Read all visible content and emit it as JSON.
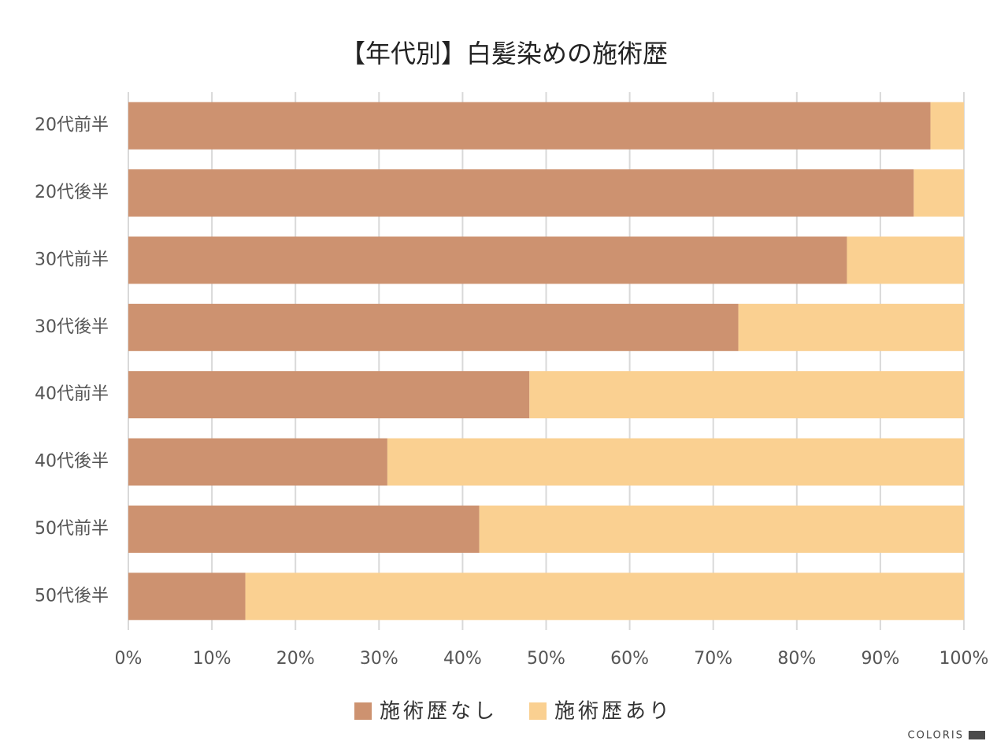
{
  "chart_data": {
    "type": "stacked_bar_horizontal",
    "title": "【年代別】白髪染めの施術歴",
    "categories": [
      "20代前半",
      "20代後半",
      "30代前半",
      "30代後半",
      "40代前半",
      "40代後半",
      "50代前半",
      "50代後半"
    ],
    "series": [
      {
        "name": "施術歴なし",
        "color": "#cd9270",
        "values": [
          96,
          94,
          86,
          73,
          48,
          31,
          42,
          14
        ]
      },
      {
        "name": "施術歴あり",
        "color": "#fad091",
        "values": [
          4,
          6,
          14,
          27,
          52,
          69,
          58,
          86
        ]
      }
    ],
    "xlim": [
      0,
      100
    ],
    "xticks": [
      {
        "value": 0,
        "label": "0%"
      },
      {
        "value": 10,
        "label": "10%"
      },
      {
        "value": 20,
        "label": "20%"
      },
      {
        "value": 30,
        "label": "30%"
      },
      {
        "value": 40,
        "label": "40%"
      },
      {
        "value": 50,
        "label": "50%"
      },
      {
        "value": 60,
        "label": "60%"
      },
      {
        "value": 70,
        "label": "70%"
      },
      {
        "value": 80,
        "label": "80%"
      },
      {
        "value": 90,
        "label": "90%"
      },
      {
        "value": 100,
        "label": "100%"
      }
    ],
    "grid": true,
    "legend": "bottom"
  },
  "footer": {
    "brand": "COLORIS"
  }
}
